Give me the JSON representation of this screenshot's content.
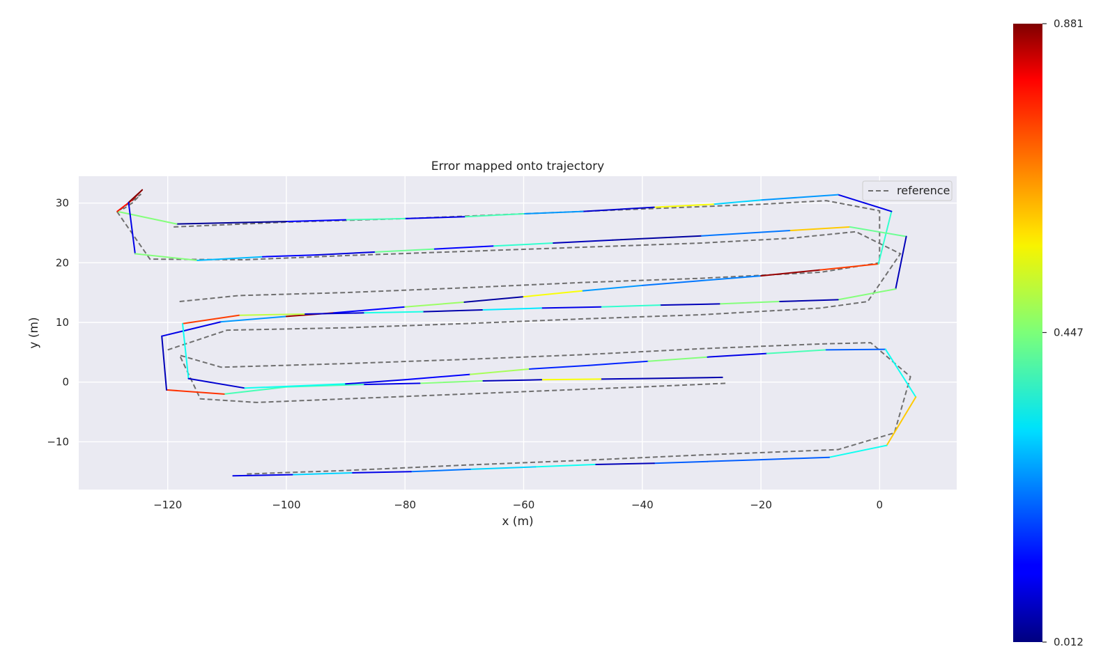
{
  "chart_data": {
    "type": "line",
    "title": "Error mapped onto trajectory",
    "xlabel": "x (m)",
    "ylabel": "y (m)",
    "xlim": [
      -135,
      13
    ],
    "ylim": [
      -18,
      34.5
    ],
    "x_ticks": [
      -120,
      -100,
      -80,
      -60,
      -40,
      -20,
      0
    ],
    "x_tick_labels": [
      "−120",
      "−100",
      "−80",
      "−60",
      "−40",
      "−20",
      "0"
    ],
    "y_ticks": [
      -10,
      0,
      10,
      20,
      30
    ],
    "y_tick_labels": [
      "−10",
      "0",
      "10",
      "20",
      "30"
    ],
    "grid": true,
    "legend": {
      "position": "top-right",
      "entries": [
        "reference"
      ]
    },
    "colorbar": {
      "min": 0.012,
      "max": 0.881,
      "tick_values": [
        0.881,
        0.447,
        0.012
      ],
      "tick_labels": [
        "0.881",
        "0.447",
        "0.012"
      ],
      "colormap": "jet"
    },
    "reference": {
      "name": "reference",
      "color": "#6e6e6e",
      "points": [
        [
          -26,
          -0.2
        ],
        [
          -40,
          -0.8
        ],
        [
          -60,
          -1.6
        ],
        [
          -80,
          -2.4
        ],
        [
          -105,
          -3.4
        ],
        [
          -114.5,
          -2.8
        ],
        [
          -118,
          4.5
        ],
        [
          -111,
          2.5
        ],
        [
          -90,
          3.1
        ],
        [
          -70,
          3.8
        ],
        [
          -50,
          4.6
        ],
        [
          -30,
          5.6
        ],
        [
          -10,
          6.4
        ],
        [
          -1.5,
          6.6
        ],
        [
          5.2,
          0.9
        ],
        [
          2.5,
          -8.5
        ],
        [
          -7,
          -11.3
        ],
        [
          -30,
          -12.2
        ],
        [
          -50,
          -13.1
        ],
        [
          -70,
          -13.9
        ],
        [
          -90,
          -14.8
        ],
        [
          -107,
          -15.4
        ]
      ],
      "points_b": [
        [
          -120,
          5.4
        ],
        [
          -110,
          8.7
        ],
        [
          -90,
          9.1
        ],
        [
          -70,
          9.8
        ],
        [
          -50,
          10.6
        ],
        [
          -30,
          11.3
        ],
        [
          -10,
          12.4
        ],
        [
          -2,
          13.5
        ],
        [
          3.5,
          21.5
        ],
        [
          -4,
          25.2
        ],
        [
          -15,
          24.1
        ],
        [
          -30,
          23.3
        ],
        [
          -50,
          22.6
        ],
        [
          -70,
          21.9
        ],
        [
          -90,
          21.2
        ],
        [
          -107,
          20.5
        ],
        [
          -123,
          20.6
        ],
        [
          -128.5,
          28.5
        ],
        [
          -124.5,
          31.5
        ],
        [
          -126,
          30.0
        ],
        [
          -127.5,
          29.0
        ]
      ],
      "points_c": [
        [
          -118,
          13.5
        ],
        [
          -108,
          14.5
        ],
        [
          -90,
          15.0
        ],
        [
          -70,
          15.8
        ],
        [
          -50,
          16.7
        ],
        [
          -30,
          17.4
        ],
        [
          -10,
          18.4
        ],
        [
          0,
          20.0
        ]
      ],
      "points_d": [
        [
          -119,
          26.0
        ],
        [
          -100,
          26.8
        ],
        [
          -80,
          27.4
        ],
        [
          -60,
          28.2
        ],
        [
          -40,
          29.0
        ],
        [
          -20,
          29.8
        ],
        [
          -9,
          30.4
        ],
        [
          0,
          28.7
        ],
        [
          0,
          20.2
        ]
      ]
    },
    "estimate_segments": [
      [
        -26.5,
        0.8,
        -40,
        0.6,
        0.05
      ],
      [
        -40,
        0.6,
        -47,
        0.5,
        0.06
      ],
      [
        -47,
        0.5,
        -57,
        0.4,
        0.55
      ],
      [
        -57,
        0.4,
        -67,
        0.2,
        0.06
      ],
      [
        -67,
        0.2,
        -77.5,
        -0.2,
        0.45
      ],
      [
        -77.5,
        -0.2,
        -87,
        -0.4,
        0.1
      ],
      [
        -87,
        -0.4,
        -100,
        -0.8,
        0.4
      ],
      [
        -100,
        -0.8,
        -110.5,
        -2.0,
        0.4
      ],
      [
        -110.5,
        -2.0,
        -120.2,
        -1.3,
        0.73
      ],
      [
        -120.2,
        -1.3,
        -121,
        7.7,
        0.06
      ],
      [
        -121,
        7.7,
        -111,
        10.1,
        0.1
      ],
      [
        -111,
        10.1,
        -100,
        11.0,
        0.25
      ],
      [
        -100,
        11.0,
        -92,
        11.6,
        0.86
      ],
      [
        -92,
        11.6,
        -80,
        12.6,
        0.12
      ],
      [
        -80,
        12.6,
        -70,
        13.4,
        0.47
      ],
      [
        -70,
        13.4,
        -60,
        14.3,
        0.04
      ],
      [
        -60,
        14.3,
        -50,
        15.3,
        0.55
      ],
      [
        -50,
        15.3,
        -40,
        16.2,
        0.25
      ],
      [
        -40,
        16.2,
        -30,
        17.0,
        0.22
      ],
      [
        -30,
        17.0,
        -20,
        17.8,
        0.23
      ],
      [
        -20,
        17.8,
        -10,
        18.8,
        0.86
      ],
      [
        -10,
        18.8,
        -0.2,
        19.8,
        0.72
      ],
      [
        -0.2,
        19.8,
        2,
        28.6,
        0.38
      ],
      [
        2,
        28.6,
        -7,
        31.4,
        0.1
      ],
      [
        -7,
        31.4,
        -20,
        30.5,
        0.25
      ],
      [
        -20,
        30.5,
        -28,
        29.8,
        0.3
      ],
      [
        -28,
        29.8,
        -38,
        29.3,
        0.55
      ],
      [
        -38,
        29.3,
        -50,
        28.6,
        0.08
      ],
      [
        -50,
        28.6,
        -60,
        28.2,
        0.25
      ],
      [
        -60,
        28.2,
        -70,
        27.7,
        0.4
      ],
      [
        -70,
        27.7,
        -80,
        27.4,
        0.1
      ],
      [
        -80,
        27.4,
        -90,
        27.2,
        0.4
      ],
      [
        -90,
        27.2,
        -100,
        26.9,
        0.12
      ],
      [
        -100,
        26.9,
        -118.5,
        26.5,
        0.03
      ],
      [
        -118.5,
        26.5,
        -128.5,
        28.6,
        0.45
      ],
      [
        -128.5,
        28.6,
        -126,
        30.5,
        0.76
      ],
      [
        -126,
        30.5,
        -124.3,
        32.2,
        0.81
      ],
      [
        -124.3,
        32.2,
        -126.6,
        30.1,
        0.88
      ],
      [
        -126.6,
        30.1,
        -125.5,
        21.5,
        0.1
      ],
      [
        -125.5,
        21.5,
        -115,
        20.4,
        0.45
      ],
      [
        -115,
        20.4,
        -104,
        21.0,
        0.28
      ],
      [
        -104,
        21.0,
        -95,
        21.3,
        0.12
      ],
      [
        -95,
        21.3,
        -85,
        21.8,
        0.09
      ],
      [
        -85,
        21.8,
        -75,
        22.3,
        0.43
      ],
      [
        -75,
        22.3,
        -65,
        22.8,
        0.12
      ],
      [
        -65,
        22.8,
        -55,
        23.3,
        0.38
      ],
      [
        -55,
        23.3,
        -45,
        23.8,
        0.06
      ],
      [
        -45,
        23.8,
        -30,
        24.5,
        0.04
      ],
      [
        -30,
        24.5,
        -15,
        25.4,
        0.22
      ],
      [
        -15,
        25.4,
        -5,
        26.0,
        0.6
      ],
      [
        -5,
        26.0,
        4.5,
        24.4,
        0.43
      ],
      [
        4.5,
        24.4,
        2.7,
        15.6,
        0.06
      ],
      [
        2.7,
        15.6,
        -7,
        13.8,
        0.45
      ],
      [
        -7,
        13.8,
        -17,
        13.5,
        0.05
      ],
      [
        -17,
        13.5,
        -27,
        13.1,
        0.45
      ],
      [
        -27,
        13.1,
        -37,
        12.9,
        0.06
      ],
      [
        -37,
        12.9,
        -47,
        12.6,
        0.38
      ],
      [
        -47,
        12.6,
        -57,
        12.4,
        0.1
      ],
      [
        -57,
        12.4,
        -67,
        12.1,
        0.32
      ],
      [
        -67,
        12.1,
        -77,
        11.8,
        0.05
      ],
      [
        -77,
        11.8,
        -87,
        11.6,
        0.36
      ],
      [
        -87,
        11.6,
        -97,
        11.4,
        0.08
      ],
      [
        -97,
        11.4,
        -108,
        11.2,
        0.5
      ],
      [
        -108,
        11.2,
        -117.5,
        9.8,
        0.72
      ],
      [
        -117.5,
        9.8,
        -116.5,
        0.6,
        0.35
      ],
      [
        -116.5,
        0.6,
        -107,
        -1.0,
        0.08
      ],
      [
        -107,
        -1.0,
        -90,
        -0.3,
        0.35
      ],
      [
        -90,
        -0.3,
        -80,
        0.4,
        0.1
      ],
      [
        -80,
        0.4,
        -69,
        1.3,
        0.12
      ],
      [
        -69,
        1.3,
        -59,
        2.2,
        0.48
      ],
      [
        -59,
        2.2,
        -49,
        2.8,
        0.15
      ],
      [
        -49,
        2.8,
        -39,
        3.5,
        0.15
      ],
      [
        -39,
        3.5,
        -29,
        4.2,
        0.45
      ],
      [
        -29,
        4.2,
        -19,
        4.8,
        0.1
      ],
      [
        -19,
        4.8,
        -9,
        5.4,
        0.4
      ],
      [
        -9,
        5.4,
        1,
        5.5,
        0.2
      ],
      [
        1,
        5.5,
        6.1,
        -2.5,
        0.35
      ],
      [
        6.1,
        -2.5,
        1.2,
        -10.6,
        0.6
      ],
      [
        1.2,
        -10.6,
        -8.5,
        -12.6,
        0.35
      ],
      [
        -8.5,
        -12.6,
        -20,
        -13.0,
        0.2
      ],
      [
        -20,
        -13.0,
        -29,
        -13.3,
        0.2
      ],
      [
        -29,
        -13.3,
        -38,
        -13.6,
        0.2
      ],
      [
        -38,
        -13.6,
        -48,
        -13.8,
        0.06
      ],
      [
        -48,
        -13.8,
        -58,
        -14.2,
        0.35
      ],
      [
        -58,
        -14.2,
        -69,
        -14.6,
        0.3
      ],
      [
        -69,
        -14.6,
        -79,
        -15.0,
        0.22
      ],
      [
        -79,
        -15.0,
        -89,
        -15.2,
        0.1
      ],
      [
        -89,
        -15.2,
        -99,
        -15.5,
        0.3
      ],
      [
        -99,
        -15.5,
        -109,
        -15.7,
        0.1
      ]
    ]
  }
}
